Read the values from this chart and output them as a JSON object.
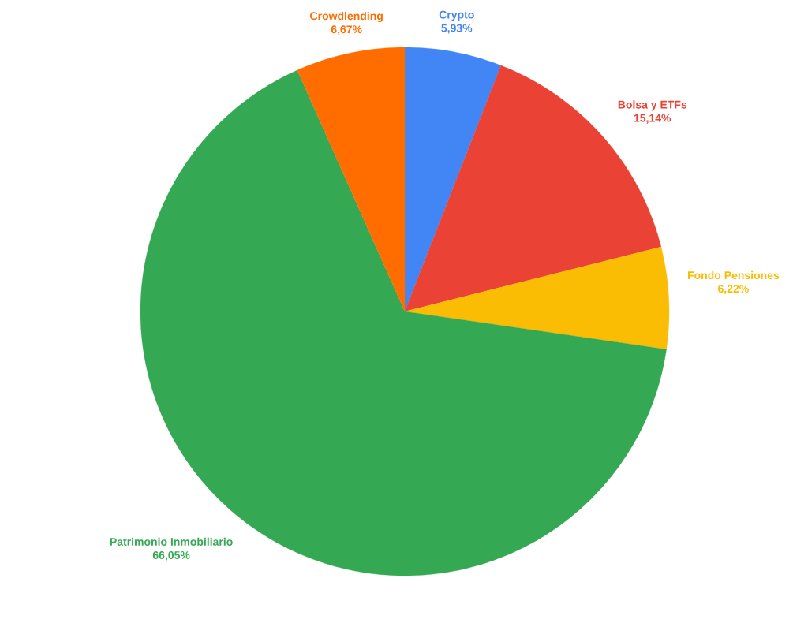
{
  "chart_data": {
    "type": "pie",
    "categories": [
      "Crypto",
      "Bolsa y ETFs",
      "Fondo Pensiones",
      "Patrimonio Inmobiliario",
      "Crowdlending"
    ],
    "values": [
      5.93,
      15.14,
      6.22,
      66.05,
      6.67
    ],
    "colors": [
      "#4285f4",
      "#ea4335",
      "#fbbc04",
      "#34a853",
      "#ff6d01"
    ],
    "value_labels": [
      "5,93%",
      "15,14%",
      "6,22%",
      "66,05%",
      "6,67%"
    ]
  }
}
